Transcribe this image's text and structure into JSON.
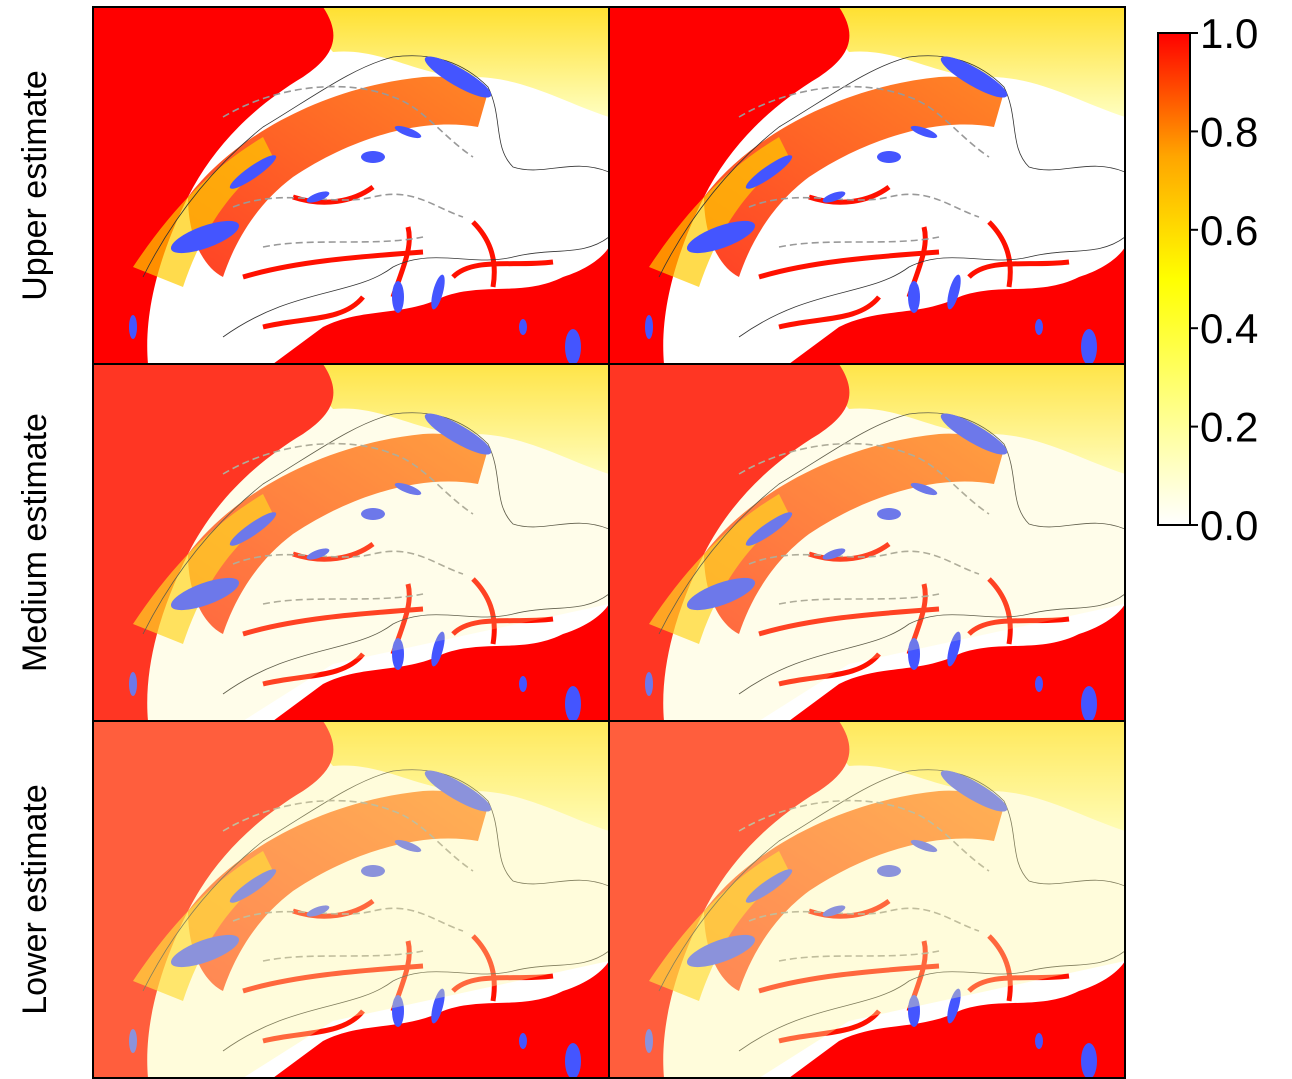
{
  "row_labels": [
    "Upper estimate",
    "Medium estimate",
    "Lower estimate"
  ],
  "colorbar": {
    "ylim": [
      0,
      1
    ],
    "yticks": [
      {
        "value": 0,
        "label": "0.0"
      },
      {
        "value": 0.2,
        "label": "0.2"
      },
      {
        "value": 0.4,
        "label": "0.4"
      },
      {
        "value": 0.6,
        "label": "0.6"
      },
      {
        "value": 0.8,
        "label": "0.8"
      },
      {
        "value": 1,
        "label": "1.0"
      }
    ],
    "colors": [
      "#ffffff",
      "#ffff80",
      "#ffff00",
      "#ffa500",
      "#ff0000"
    ]
  }
}
